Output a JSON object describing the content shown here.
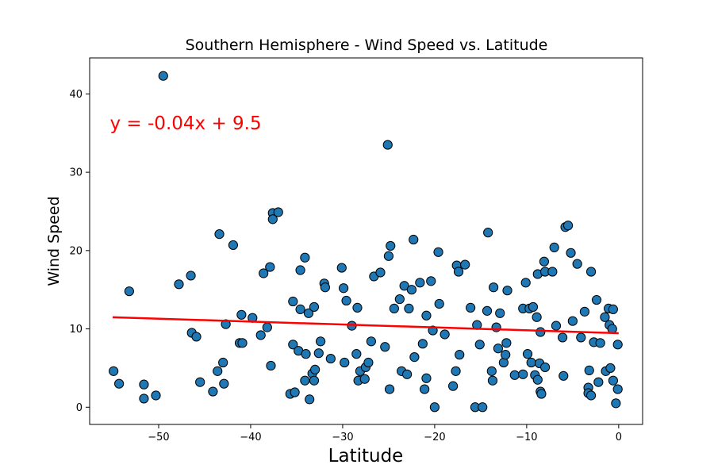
{
  "chart_data": {
    "type": "scatter",
    "title": "Southern Hemisphere - Wind Speed vs. Latitude",
    "xlabel": "Latitude",
    "ylabel": "Wind Speed",
    "xlim": [
      -57.5,
      2.6
    ],
    "ylim": [
      -2.2,
      44.6
    ],
    "x_ticks": [
      -50,
      -40,
      -30,
      -20,
      -10,
      0
    ],
    "y_ticks": [
      0,
      10,
      20,
      30,
      40
    ],
    "grid": false,
    "point_color": "#1f77b4",
    "point_edge_color": "#000000",
    "regression": {
      "equation": "y = -0.04x + 9.5",
      "color": "#ff0000",
      "x_range": [
        -55.0,
        0.0
      ],
      "slope": -0.037,
      "intercept": 9.45,
      "annotation_anchor": [
        -55.3,
        35.5
      ]
    },
    "points": [
      [
        -54.9,
        4.6
      ],
      [
        -54.3,
        3.0
      ],
      [
        -53.2,
        14.8
      ],
      [
        -51.6,
        2.9
      ],
      [
        -51.6,
        1.1
      ],
      [
        -50.3,
        1.5
      ],
      [
        -49.5,
        42.3
      ],
      [
        -47.8,
        15.7
      ],
      [
        -46.5,
        16.8
      ],
      [
        -46.4,
        9.5
      ],
      [
        -45.9,
        9.0
      ],
      [
        -45.5,
        3.2
      ],
      [
        -44.1,
        2.0
      ],
      [
        -43.6,
        4.6
      ],
      [
        -43.4,
        22.1
      ],
      [
        -43.0,
        5.7
      ],
      [
        -42.9,
        3.0
      ],
      [
        -42.7,
        10.6
      ],
      [
        -41.9,
        20.7
      ],
      [
        -41.2,
        8.2
      ],
      [
        -41.0,
        11.8
      ],
      [
        -40.9,
        8.2
      ],
      [
        -39.8,
        11.4
      ],
      [
        -38.9,
        9.2
      ],
      [
        -38.6,
        17.1
      ],
      [
        -38.2,
        10.2
      ],
      [
        -37.9,
        17.9
      ],
      [
        -37.8,
        5.3
      ],
      [
        -37.6,
        24.8
      ],
      [
        -37.6,
        24.0
      ],
      [
        -37.0,
        24.9
      ],
      [
        -35.7,
        1.7
      ],
      [
        -35.4,
        13.5
      ],
      [
        -35.4,
        8.0
      ],
      [
        -35.2,
        1.9
      ],
      [
        -34.8,
        7.2
      ],
      [
        -34.6,
        12.5
      ],
      [
        -34.6,
        17.5
      ],
      [
        -34.1,
        19.1
      ],
      [
        -34.1,
        3.4
      ],
      [
        -34.0,
        6.8
      ],
      [
        -33.7,
        12.0
      ],
      [
        -33.6,
        1.0
      ],
      [
        -33.3,
        4.3
      ],
      [
        -33.1,
        12.8
      ],
      [
        -33.1,
        3.4
      ],
      [
        -33.0,
        4.8
      ],
      [
        -32.6,
        6.9
      ],
      [
        -32.4,
        8.4
      ],
      [
        -32.0,
        15.8
      ],
      [
        -31.9,
        15.3
      ],
      [
        -31.3,
        6.2
      ],
      [
        -30.1,
        17.8
      ],
      [
        -29.9,
        15.2
      ],
      [
        -29.8,
        5.7
      ],
      [
        -29.6,
        13.6
      ],
      [
        -29.0,
        10.4
      ],
      [
        -28.5,
        6.8
      ],
      [
        -28.4,
        12.7
      ],
      [
        -28.3,
        3.4
      ],
      [
        -28.1,
        4.6
      ],
      [
        -27.6,
        3.6
      ],
      [
        -27.5,
        5.1
      ],
      [
        -27.2,
        5.7
      ],
      [
        -26.9,
        8.4
      ],
      [
        -26.6,
        16.7
      ],
      [
        -25.9,
        17.2
      ],
      [
        -25.4,
        7.7
      ],
      [
        -25.1,
        33.5
      ],
      [
        -25.0,
        19.3
      ],
      [
        -24.9,
        2.3
      ],
      [
        -24.8,
        20.6
      ],
      [
        -24.4,
        12.6
      ],
      [
        -23.8,
        13.8
      ],
      [
        -23.6,
        4.6
      ],
      [
        -23.3,
        15.5
      ],
      [
        -23.0,
        4.2
      ],
      [
        -22.8,
        12.6
      ],
      [
        -22.5,
        15.0
      ],
      [
        -22.3,
        21.4
      ],
      [
        -22.2,
        6.4
      ],
      [
        -21.6,
        15.9
      ],
      [
        -21.3,
        8.1
      ],
      [
        -21.1,
        2.3
      ],
      [
        -20.9,
        3.7
      ],
      [
        -20.9,
        11.7
      ],
      [
        -20.4,
        16.1
      ],
      [
        -20.2,
        9.8
      ],
      [
        -20.0,
        0.0
      ],
      [
        -19.6,
        19.8
      ],
      [
        -19.5,
        13.2
      ],
      [
        -18.9,
        9.3
      ],
      [
        -18.0,
        2.7
      ],
      [
        -17.7,
        4.6
      ],
      [
        -17.6,
        18.1
      ],
      [
        -17.4,
        17.3
      ],
      [
        -17.3,
        6.7
      ],
      [
        -16.7,
        18.2
      ],
      [
        -16.1,
        12.7
      ],
      [
        -15.6,
        0.0
      ],
      [
        -15.4,
        10.5
      ],
      [
        -15.1,
        8.0
      ],
      [
        -14.8,
        0.0
      ],
      [
        -14.3,
        12.3
      ],
      [
        -14.2,
        22.3
      ],
      [
        -13.8,
        4.6
      ],
      [
        -13.7,
        3.4
      ],
      [
        -13.6,
        15.3
      ],
      [
        -13.3,
        10.2
      ],
      [
        -13.1,
        7.5
      ],
      [
        -12.9,
        12.0
      ],
      [
        -12.5,
        5.7
      ],
      [
        -12.3,
        6.7
      ],
      [
        -12.2,
        8.2
      ],
      [
        -12.1,
        14.9
      ],
      [
        -11.3,
        4.1
      ],
      [
        -10.4,
        4.2
      ],
      [
        -10.4,
        12.6
      ],
      [
        -10.1,
        15.9
      ],
      [
        -9.9,
        6.8
      ],
      [
        -9.7,
        12.6
      ],
      [
        -9.5,
        5.7
      ],
      [
        -9.3,
        12.8
      ],
      [
        -9.1,
        4.1
      ],
      [
        -8.9,
        11.5
      ],
      [
        -8.8,
        3.5
      ],
      [
        -8.8,
        17.0
      ],
      [
        -8.6,
        5.6
      ],
      [
        -8.5,
        9.6
      ],
      [
        -8.5,
        2.0
      ],
      [
        -8.4,
        1.7
      ],
      [
        -8.1,
        18.6
      ],
      [
        -8.0,
        17.3
      ],
      [
        -8.0,
        5.1
      ],
      [
        -7.2,
        17.3
      ],
      [
        -7.0,
        20.4
      ],
      [
        -6.8,
        10.4
      ],
      [
        -6.1,
        8.9
      ],
      [
        -6.0,
        4.0
      ],
      [
        -5.8,
        23.0
      ],
      [
        -5.5,
        23.2
      ],
      [
        -5.2,
        19.7
      ],
      [
        -5.0,
        11.0
      ],
      [
        -4.5,
        18.3
      ],
      [
        -4.1,
        8.9
      ],
      [
        -3.7,
        12.2
      ],
      [
        -3.3,
        2.5
      ],
      [
        -3.3,
        1.8
      ],
      [
        -3.2,
        4.7
      ],
      [
        -3.0,
        17.3
      ],
      [
        -3.0,
        1.5
      ],
      [
        -2.7,
        8.3
      ],
      [
        -2.4,
        13.7
      ],
      [
        -2.2,
        3.2
      ],
      [
        -2.0,
        8.2
      ],
      [
        -1.5,
        11.5
      ],
      [
        -1.4,
        4.6
      ],
      [
        -1.1,
        12.6
      ],
      [
        -1.0,
        10.5
      ],
      [
        -0.9,
        5.0
      ],
      [
        -0.7,
        10.0
      ],
      [
        -0.6,
        3.4
      ],
      [
        -0.6,
        12.5
      ],
      [
        -0.3,
        0.5
      ],
      [
        -0.1,
        2.3
      ],
      [
        -0.1,
        8.0
      ]
    ]
  }
}
